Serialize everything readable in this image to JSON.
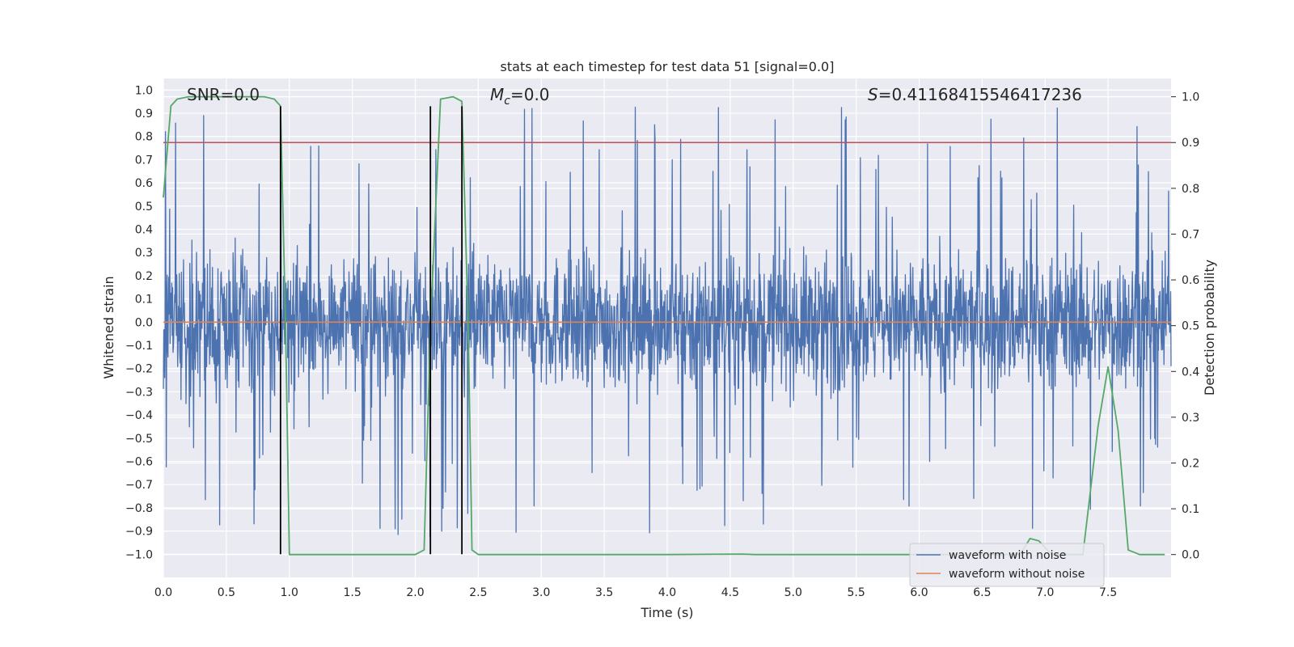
{
  "chart_data": {
    "type": "line",
    "title": "stats at each timestep for test data 51 [signal=0.0]",
    "xlabel": "Time (s)",
    "ylabel": "Whitened strain",
    "y2label": "Detection probability",
    "xlim": [
      0.0,
      8.0
    ],
    "ylim": [
      -1.1,
      1.05
    ],
    "y2lim": [
      -0.05,
      1.04
    ],
    "x_ticks": [
      0.0,
      0.5,
      1.0,
      1.5,
      2.0,
      2.5,
      3.0,
      3.5,
      4.0,
      4.5,
      5.0,
      5.5,
      6.0,
      6.5,
      7.0,
      7.5
    ],
    "x_tick_labels": [
      "0.0",
      "0.5",
      "1.0",
      "1.5",
      "2.0",
      "2.5",
      "3.0",
      "3.5",
      "4.0",
      "4.5",
      "5.0",
      "5.5",
      "6.0",
      "6.5",
      "7.0",
      "7.5"
    ],
    "y_ticks": [
      1.0,
      0.9,
      0.8,
      0.7,
      0.6,
      0.5,
      0.4,
      0.3,
      0.2,
      0.1,
      0.0,
      -0.1,
      -0.2,
      -0.3,
      -0.4,
      -0.5,
      -0.6,
      -0.7,
      -0.8,
      -0.9,
      -1.0
    ],
    "y_tick_labels": [
      "1.0",
      "0.9",
      "0.8",
      "0.7",
      "0.6",
      "0.5",
      "0.4",
      "0.3",
      "0.2",
      "0.1",
      "0.0",
      "−0.1",
      "−0.2",
      "−0.3",
      "−0.4",
      "−0.5",
      "−0.6",
      "−0.7",
      "−0.8",
      "−0.9",
      "−1.0"
    ],
    "y2_ticks": [
      1.0,
      0.9,
      0.8,
      0.7,
      0.6,
      0.5,
      0.4,
      0.3,
      0.2,
      0.1,
      0.0
    ],
    "y2_tick_labels": [
      "1.0",
      "0.9",
      "0.8",
      "0.7",
      "0.6",
      "0.5",
      "0.4",
      "0.3",
      "0.2",
      "0.1",
      "0.0"
    ],
    "grid": true,
    "background": "#eaeaf2",
    "annotations": {
      "snr": "SNR=0.0",
      "mc_symbol": "M",
      "mc_sub": "c",
      "mc_rest": "=0.0",
      "s_symbol": "S",
      "s_rest": "=0.41168415546417236"
    },
    "threshold": {
      "axis": "y2",
      "value": 0.9,
      "color": "#c44e52"
    },
    "vertical_lines": {
      "color": "#000000",
      "x": [
        0.93,
        2.12,
        2.37
      ],
      "y_range": [
        -1.0,
        0.93
      ]
    },
    "series": [
      {
        "name": "waveform with noise",
        "color": "#4c72b0",
        "axis": "y",
        "description_of_values": "dense noise, amplitude mostly within ±0.35 with frequent spikes to about ±0.9",
        "envelope": {
          "core": 0.3,
          "spike_max": 0.93,
          "spike_min": -1.0
        }
      },
      {
        "name": "waveform without noise",
        "color": "#dd8452",
        "axis": "y",
        "x": [
          0.0,
          8.0
        ],
        "y": [
          0.0,
          0.0
        ]
      },
      {
        "name": "detection probability",
        "color": "#55a868",
        "axis": "y2",
        "x": [
          0.0,
          0.06,
          0.11,
          0.2,
          0.5,
          0.8,
          0.88,
          0.93,
          0.97,
          1.0,
          1.5,
          2.0,
          2.07,
          2.12,
          2.2,
          2.3,
          2.37,
          2.42,
          2.45,
          2.5,
          3.0,
          4.0,
          4.6,
          4.7,
          5.0,
          6.0,
          6.8,
          6.88,
          6.95,
          7.05,
          7.2,
          7.3,
          7.42,
          7.5,
          7.58,
          7.66,
          7.75,
          7.95
        ],
        "y": [
          0.78,
          0.98,
          0.995,
          1.0,
          1.0,
          1.0,
          0.995,
          0.98,
          0.5,
          0.0,
          0.0,
          0.0,
          0.01,
          0.5,
          0.995,
          1.0,
          0.99,
          0.5,
          0.01,
          0.0,
          0.0,
          0.0,
          0.001,
          0.0,
          0.0,
          0.0,
          0.0,
          0.035,
          0.03,
          0.0,
          0.0,
          0.0,
          0.28,
          0.41,
          0.27,
          0.01,
          0.0,
          0.0
        ]
      }
    ],
    "legend": {
      "placement": "lower-right",
      "entries": [
        {
          "label": "waveform with noise",
          "color": "#4c72b0"
        },
        {
          "label": "waveform without noise",
          "color": "#dd8452"
        }
      ]
    }
  }
}
